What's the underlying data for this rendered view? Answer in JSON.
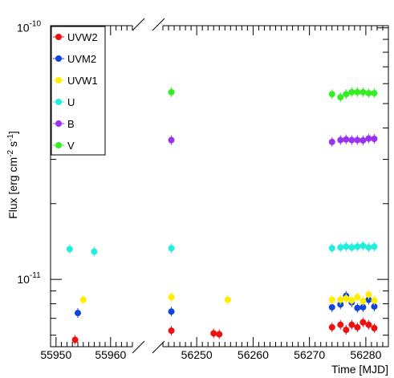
{
  "chart_data": {
    "type": "scatter",
    "title": "",
    "xlabel": "Time [MJD]",
    "ylabel_parts": {
      "pre": "Flux [erg cm",
      "exp1": "-2",
      "mid": " s",
      "exp2": "-1",
      "post": "]"
    },
    "yscale": "log",
    "ylim": [
      5.4e-12,
      1.02e-10
    ],
    "y_tick_labels": [
      {
        "value": 1e-10,
        "base": "10",
        "exp": "-10"
      },
      {
        "value": 1e-11,
        "base": "10",
        "exp": "-11"
      }
    ],
    "x_segments": [
      {
        "range": [
          55949,
          55964
        ],
        "ticks": [
          55950,
          55960
        ],
        "tick_labels": [
          "55950",
          "55960"
        ]
      },
      {
        "range": [
          56244,
          56284
        ],
        "ticks": [
          56250,
          56260,
          56270,
          56280
        ],
        "tick_labels": [
          "56250",
          "56260",
          "56270",
          "56280"
        ]
      }
    ],
    "legend_position": "top-left",
    "series": [
      {
        "name": "UVW2",
        "color": "#ee1111",
        "points": [
          [
            55953.5,
            5.75e-12
          ],
          [
            56245.5,
            6.25e-12
          ],
          [
            56253.0,
            6.1e-12
          ],
          [
            56254.0,
            6.05e-12
          ],
          [
            56274.0,
            6.45e-12
          ],
          [
            56275.5,
            6.6e-12
          ],
          [
            56276.5,
            6.3e-12
          ],
          [
            56277.5,
            6.6e-12
          ],
          [
            56278.5,
            6.45e-12
          ],
          [
            56279.5,
            6.75e-12
          ],
          [
            56280.5,
            6.6e-12
          ],
          [
            56281.5,
            6.4e-12
          ]
        ]
      },
      {
        "name": "UVM2",
        "color": "#1144dd",
        "points": [
          [
            55954.0,
            7.35e-12
          ],
          [
            56245.5,
            7.45e-12
          ],
          [
            56274.0,
            7.75e-12
          ],
          [
            56275.5,
            7.95e-12
          ],
          [
            56276.5,
            8.6e-12
          ],
          [
            56277.5,
            8.1e-12
          ],
          [
            56278.5,
            7.7e-12
          ],
          [
            56279.5,
            7.75e-12
          ],
          [
            56280.5,
            8.3e-12
          ],
          [
            56281.5,
            7.8e-12
          ]
        ]
      },
      {
        "name": "UVW1",
        "color": "#ffee00",
        "points": [
          [
            55955.0,
            8.3e-12
          ],
          [
            56245.5,
            8.5e-12
          ],
          [
            56255.5,
            8.3e-12
          ],
          [
            56274.0,
            8.3e-12
          ],
          [
            56275.5,
            8.3e-12
          ],
          [
            56276.5,
            8.4e-12
          ],
          [
            56277.5,
            8.25e-12
          ],
          [
            56278.5,
            8.5e-12
          ],
          [
            56279.5,
            8.2e-12
          ],
          [
            56280.5,
            8.7e-12
          ],
          [
            56281.5,
            8.25e-12
          ]
        ]
      },
      {
        "name": "U",
        "color": "#22eedd",
        "points": [
          [
            55952.5,
            1.32e-11
          ],
          [
            55957.0,
            1.29e-11
          ],
          [
            56245.5,
            1.33e-11
          ],
          [
            56274.0,
            1.33e-11
          ],
          [
            56275.5,
            1.34e-11
          ],
          [
            56276.5,
            1.35e-11
          ],
          [
            56277.5,
            1.34e-11
          ],
          [
            56278.5,
            1.35e-11
          ],
          [
            56279.5,
            1.36e-11
          ],
          [
            56280.5,
            1.34e-11
          ],
          [
            56281.5,
            1.35e-11
          ]
        ]
      },
      {
        "name": "B",
        "color": "#9933ee",
        "points": [
          [
            56245.5,
            3.58e-11
          ],
          [
            56274.0,
            3.52e-11
          ],
          [
            56275.5,
            3.58e-11
          ],
          [
            56276.5,
            3.6e-11
          ],
          [
            56277.5,
            3.58e-11
          ],
          [
            56278.5,
            3.58e-11
          ],
          [
            56279.5,
            3.57e-11
          ],
          [
            56280.5,
            3.63e-11
          ],
          [
            56281.5,
            3.62e-11
          ]
        ]
      },
      {
        "name": "V",
        "color": "#33ee22",
        "points": [
          [
            56245.5,
            5.55e-11
          ],
          [
            56274.0,
            5.45e-11
          ],
          [
            56275.5,
            5.3e-11
          ],
          [
            56276.5,
            5.45e-11
          ],
          [
            56277.5,
            5.55e-11
          ],
          [
            56278.5,
            5.55e-11
          ],
          [
            56279.5,
            5.55e-11
          ],
          [
            56280.5,
            5.5e-11
          ],
          [
            56281.5,
            5.5e-11
          ]
        ]
      }
    ]
  }
}
